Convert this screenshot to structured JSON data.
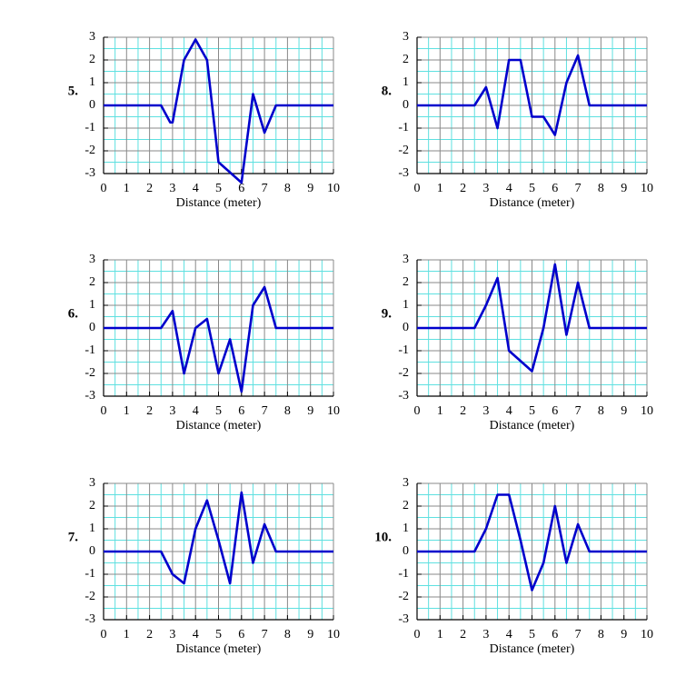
{
  "chart_data": [
    {
      "type": "line",
      "label": "5.",
      "xlabel": "Distance (meter)",
      "xlim": [
        0,
        10
      ],
      "ylim": [
        -3,
        3
      ],
      "xticks": [
        0,
        1,
        2,
        3,
        4,
        5,
        6,
        7,
        8,
        9,
        10
      ],
      "yticks": [
        -3,
        -2,
        -1,
        0,
        1,
        2,
        3
      ],
      "grid": true,
      "x": [
        0,
        2.5,
        2.9,
        3,
        3.5,
        4,
        4.5,
        5,
        6,
        6.5,
        7,
        7.5,
        10
      ],
      "series": [
        {
          "color": "#0000cc",
          "values": [
            0,
            0,
            -0.75,
            -0.75,
            2,
            2.9,
            2,
            -2.5,
            -3.4,
            0.5,
            -1.2,
            0,
            0
          ]
        }
      ]
    },
    {
      "type": "line",
      "label": "6.",
      "xlabel": "Distance (meter)",
      "xlim": [
        0,
        10
      ],
      "ylim": [
        -3,
        3
      ],
      "xticks": [
        0,
        1,
        2,
        3,
        4,
        5,
        6,
        7,
        8,
        9,
        10
      ],
      "yticks": [
        -3,
        -2,
        -1,
        0,
        1,
        2,
        3
      ],
      "grid": true,
      "x": [
        0,
        2.5,
        3,
        3.5,
        4,
        4.5,
        5,
        5.5,
        6,
        6.5,
        7,
        7.5,
        10
      ],
      "series": [
        {
          "color": "#0000cc",
          "values": [
            0,
            0,
            0.75,
            -2,
            0,
            0.4,
            -2,
            -0.5,
            -2.8,
            1,
            1.8,
            0,
            0
          ]
        }
      ]
    },
    {
      "type": "line",
      "label": "7.",
      "xlabel": "Distance (meter)",
      "xlim": [
        0,
        10
      ],
      "ylim": [
        -3,
        3
      ],
      "xticks": [
        0,
        1,
        2,
        3,
        4,
        5,
        6,
        7,
        8,
        9,
        10
      ],
      "yticks": [
        -3,
        -2,
        -1,
        0,
        1,
        2,
        3
      ],
      "grid": true,
      "x": [
        0,
        2.5,
        3,
        3.5,
        4,
        4.5,
        5,
        5.5,
        6,
        6.5,
        7,
        7.5,
        10
      ],
      "series": [
        {
          "color": "#0000cc",
          "values": [
            0,
            0,
            -1,
            -1.4,
            1,
            2.25,
            0.5,
            -1.4,
            2.6,
            -0.5,
            1.2,
            0,
            0
          ]
        }
      ]
    },
    {
      "type": "line",
      "label": "8.",
      "xlabel": "Distance (meter)",
      "xlim": [
        0,
        10
      ],
      "ylim": [
        -3,
        3
      ],
      "xticks": [
        0,
        1,
        2,
        3,
        4,
        5,
        6,
        7,
        8,
        9,
        10
      ],
      "yticks": [
        -3,
        -2,
        -1,
        0,
        1,
        2,
        3
      ],
      "grid": true,
      "x": [
        0,
        2.5,
        3,
        3.5,
        4,
        4.5,
        5,
        5.5,
        6,
        6.5,
        7,
        7.5,
        10
      ],
      "series": [
        {
          "color": "#0000cc",
          "values": [
            0,
            0,
            0.8,
            -1,
            2,
            2,
            -0.5,
            -0.5,
            -1.3,
            1,
            2.2,
            0,
            0
          ]
        }
      ]
    },
    {
      "type": "line",
      "label": "9.",
      "xlabel": "Distance (meter)",
      "xlim": [
        0,
        10
      ],
      "ylim": [
        -3,
        3
      ],
      "xticks": [
        0,
        1,
        2,
        3,
        4,
        5,
        6,
        7,
        8,
        9,
        10
      ],
      "yticks": [
        -3,
        -2,
        -1,
        0,
        1,
        2,
        3
      ],
      "grid": true,
      "x": [
        0,
        2.5,
        3,
        3.5,
        4,
        5,
        5.5,
        6,
        6.5,
        7,
        7.5,
        10
      ],
      "series": [
        {
          "color": "#0000cc",
          "values": [
            0,
            0,
            1,
            2.2,
            -1,
            -1.9,
            0,
            2.8,
            -0.3,
            2,
            0,
            0
          ]
        }
      ]
    },
    {
      "type": "line",
      "label": "10.",
      "xlabel": "Distance (meter)",
      "xlim": [
        0,
        10
      ],
      "ylim": [
        -3,
        3
      ],
      "xticks": [
        0,
        1,
        2,
        3,
        4,
        5,
        6,
        7,
        8,
        9,
        10
      ],
      "yticks": [
        -3,
        -2,
        -1,
        0,
        1,
        2,
        3
      ],
      "grid": true,
      "x": [
        0,
        2.5,
        3,
        3.5,
        4,
        4.5,
        5,
        5.5,
        6,
        6.5,
        7,
        7.5,
        10
      ],
      "series": [
        {
          "color": "#0000cc",
          "values": [
            0,
            0,
            1,
            2.5,
            2.5,
            0.5,
            -1.7,
            -0.5,
            2,
            -0.5,
            1.2,
            0,
            0
          ]
        }
      ]
    }
  ]
}
